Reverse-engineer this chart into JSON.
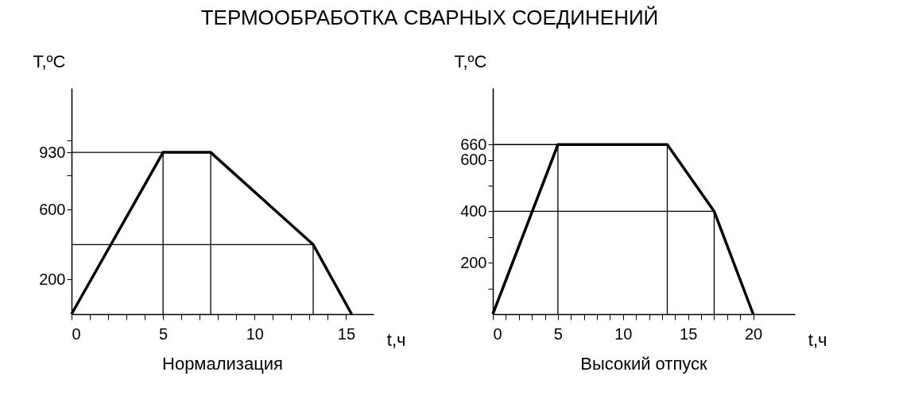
{
  "chart_data": [
    {
      "type": "line",
      "title": "ТЕРМООБРАБОТКА СВАРНЫХ СОЕДИНЕНИЙ",
      "subtitle": "Нормализация",
      "xlabel": "t,ч",
      "ylabel": "T,ºC",
      "x": [
        0,
        5,
        7.6,
        13.2,
        15.3
      ],
      "series": [
        {
          "color": "#000000",
          "values": [
            0,
            930,
            930,
            400,
            0
          ]
        }
      ],
      "xlim": [
        0,
        16.5
      ],
      "ylim": [
        0,
        1300
      ],
      "xticks": [
        0,
        {
          "value": 1,
          "label": null
        },
        {
          "value": 2,
          "label": null
        },
        {
          "value": 3,
          "label": null
        },
        {
          "value": 4,
          "label": null
        },
        5,
        {
          "value": 6,
          "label": null
        },
        {
          "value": 7,
          "label": null
        },
        {
          "value": 8,
          "label": null
        },
        {
          "value": 9,
          "label": null
        },
        10,
        {
          "value": 11,
          "label": null
        },
        {
          "value": 12,
          "label": null
        },
        {
          "value": 13,
          "label": null
        },
        {
          "value": 14,
          "label": null
        },
        15
      ],
      "yticks": [
        200,
        600,
        {
          "value": 800,
          "label": null
        },
        930,
        {
          "value": 1000,
          "label": null
        }
      ],
      "ref_lines": [
        {
          "axis": "y",
          "value": 930
        },
        {
          "axis": "y",
          "value": 400
        },
        {
          "axis": "x",
          "value": 5
        },
        {
          "axis": "x",
          "value": 7.6
        },
        {
          "axis": "x",
          "value": 13.2
        }
      ],
      "grid": false,
      "marker": "none",
      "line_style": "solid"
    },
    {
      "type": "line",
      "subtitle": "Высокий отпуск",
      "xlabel": "t,ч",
      "ylabel": "T,ºC",
      "x": [
        0,
        5,
        13.4,
        17,
        20
      ],
      "series": [
        {
          "color": "#000000",
          "values": [
            0,
            660,
            660,
            400,
            0
          ]
        }
      ],
      "xlim": [
        0,
        23.2
      ],
      "ylim": [
        0,
        880
      ],
      "xticks": [
        0,
        {
          "value": 1,
          "label": null
        },
        {
          "value": 2,
          "label": null
        },
        {
          "value": 3,
          "label": null
        },
        {
          "value": 4,
          "label": null
        },
        5,
        {
          "value": 6,
          "label": null
        },
        {
          "value": 7,
          "label": null
        },
        {
          "value": 8,
          "label": null
        },
        {
          "value": 9,
          "label": null
        },
        10,
        {
          "value": 11,
          "label": null
        },
        {
          "value": 12,
          "label": null
        },
        {
          "value": 13,
          "label": null
        },
        {
          "value": 14,
          "label": null
        },
        15,
        {
          "value": 16,
          "label": null
        },
        {
          "value": 17,
          "label": null
        },
        {
          "value": 18,
          "label": null
        },
        {
          "value": 19,
          "label": null
        },
        20
      ],
      "yticks": [
        {
          "value": 100,
          "label": null
        },
        200,
        {
          "value": 300,
          "label": null
        },
        400,
        {
          "value": 500,
          "label": null
        },
        600,
        660
      ],
      "ref_lines": [
        {
          "axis": "y",
          "value": 660
        },
        {
          "axis": "y",
          "value": 400
        },
        {
          "axis": "x",
          "value": 5
        },
        {
          "axis": "x",
          "value": 13.4
        },
        {
          "axis": "x",
          "value": 17
        }
      ],
      "grid": false,
      "marker": "none",
      "line_style": "solid"
    }
  ]
}
